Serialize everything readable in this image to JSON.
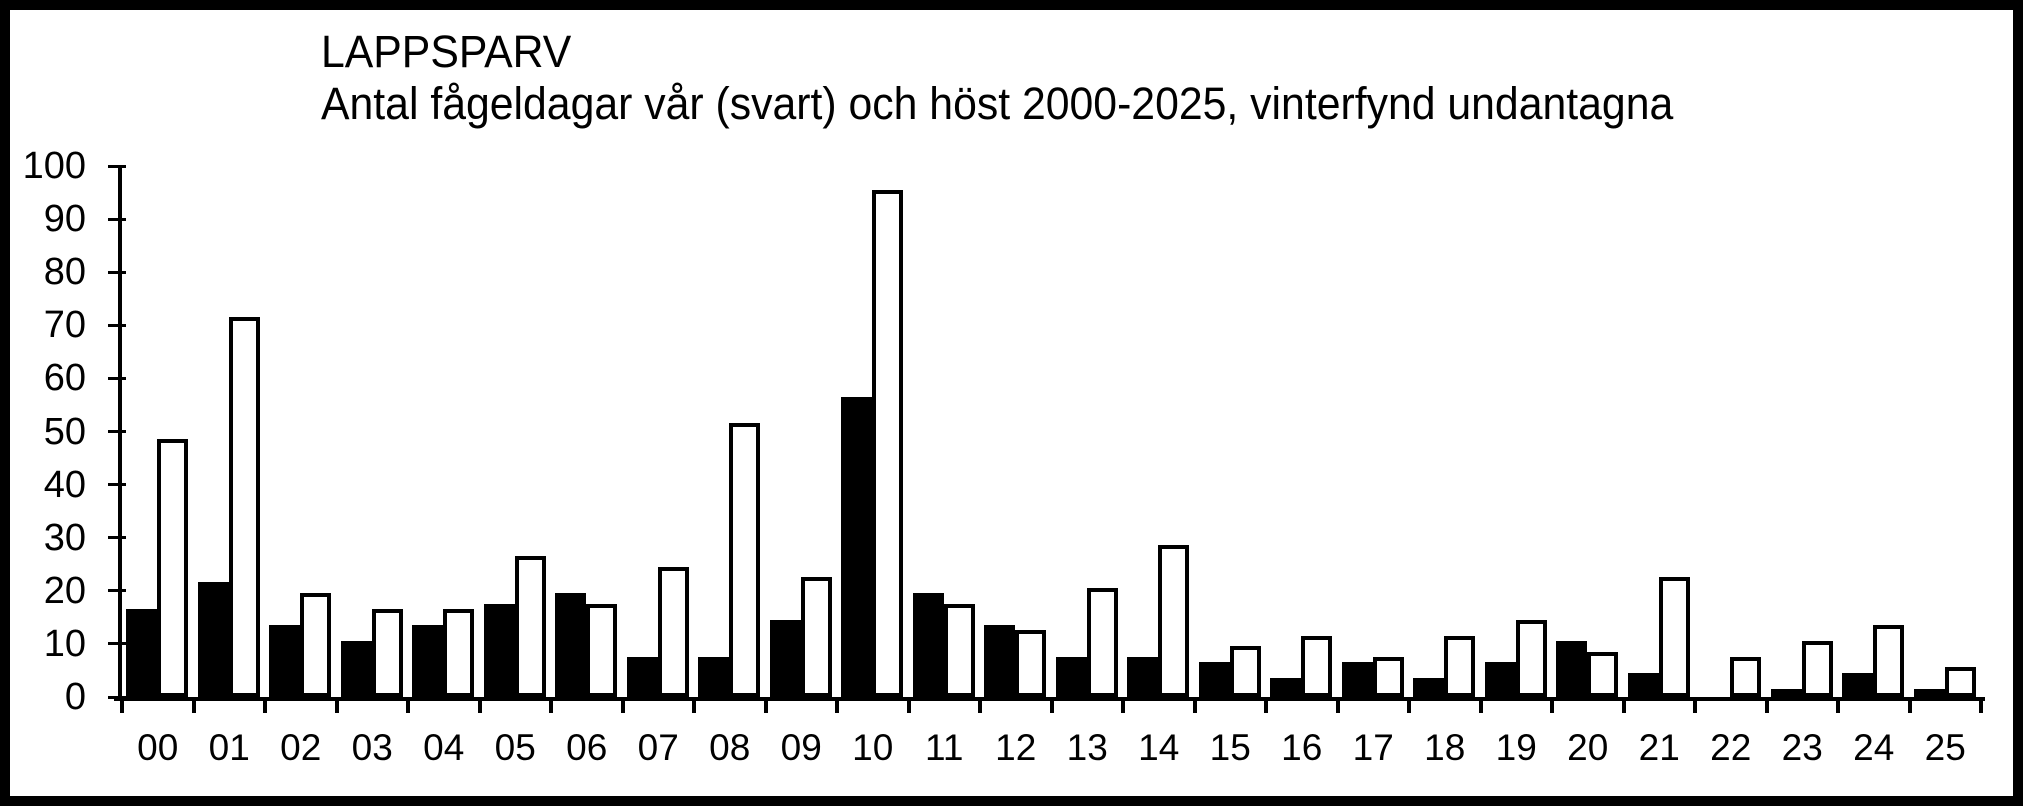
{
  "chart_data": {
    "type": "bar",
    "title": "LAPPSPARV",
    "subtitle": "Antal fågeldagar vår (svart) och höst 2000-2025, vinterfynd undantagna",
    "categories": [
      "00",
      "01",
      "02",
      "03",
      "04",
      "05",
      "06",
      "07",
      "08",
      "09",
      "10",
      "11",
      "12",
      "13",
      "14",
      "15",
      "16",
      "17",
      "18",
      "19",
      "20",
      "21",
      "22",
      "23",
      "24",
      "25"
    ],
    "series": [
      {
        "name": "vår (svart)",
        "fill": "#000000",
        "values": [
          16,
          21,
          13,
          10,
          13,
          17,
          19,
          7,
          7,
          14,
          56,
          19,
          13,
          7,
          7,
          6,
          3,
          6,
          3,
          6,
          10,
          4,
          0,
          1,
          4,
          1
        ]
      },
      {
        "name": "höst",
        "fill": "#ffffff",
        "values": [
          48,
          71,
          19,
          16,
          16,
          26,
          17,
          24,
          51,
          22,
          95,
          17,
          12,
          20,
          28,
          9,
          11,
          7,
          11,
          14,
          8,
          22,
          7,
          10,
          13,
          5
        ]
      }
    ],
    "y_axis": {
      "min": 0,
      "max": 100,
      "tick_step": 10,
      "tick_labels": [
        "0",
        "10",
        "20",
        "30",
        "40",
        "50",
        "60",
        "70",
        "80",
        "90",
        "100"
      ]
    },
    "grid": false,
    "legend_position": "none",
    "bar_outline": "#000000",
    "background": "#ffffff",
    "frame_color": "#000000"
  }
}
